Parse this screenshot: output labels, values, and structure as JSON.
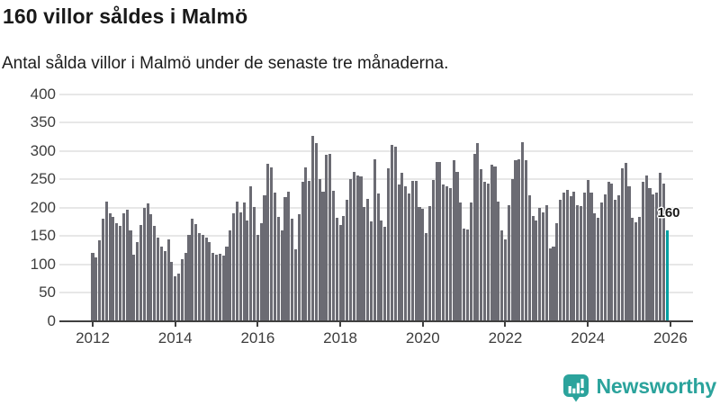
{
  "header": {
    "title": "160 villor såldes i Malmö",
    "subtitle": "Antal sålda villor i Malmö under de senaste tre månaderna."
  },
  "chart_data": {
    "type": "bar",
    "title": "160 villor såldes i Malmö",
    "subtitle": "Antal sålda villor i Malmö under de senaste tre månaderna.",
    "unit": "sålda villor (rullande 3 månader)",
    "frequency": "monthly",
    "start_period": "2012-01",
    "end_period": "2025-12",
    "xlabel": "",
    "ylabel": "",
    "ylim": [
      0,
      400
    ],
    "y_ticks": [
      0,
      50,
      100,
      150,
      200,
      250,
      300,
      350,
      400
    ],
    "x_tick_years": [
      2012,
      2014,
      2016,
      2018,
      2020,
      2022,
      2024,
      2026
    ],
    "grid": "horizontal",
    "legend": "none",
    "values_by_year": {
      "2012": [
        120,
        112,
        143,
        180,
        210,
        190,
        184,
        173,
        168,
        190,
        196,
        160
      ],
      "2013": [
        118,
        139,
        170,
        200,
        207,
        188,
        168,
        148,
        131,
        123,
        144,
        104
      ],
      "2014": [
        80,
        84,
        110,
        120,
        152,
        180,
        171,
        155,
        152,
        147,
        140,
        120
      ],
      "2015": [
        118,
        119,
        116,
        132,
        160,
        190,
        211,
        192,
        209,
        178,
        238,
        201
      ],
      "2016": [
        152,
        172,
        222,
        277,
        271,
        226,
        184,
        160,
        218,
        229,
        181,
        126
      ],
      "2017": [
        189,
        245,
        271,
        247,
        327,
        313,
        250,
        228,
        293,
        295,
        230,
        183
      ],
      "2018": [
        169,
        185,
        214,
        251,
        263,
        256,
        255,
        201,
        216,
        176,
        286,
        225
      ],
      "2019": [
        177,
        167,
        270,
        310,
        307,
        241,
        261,
        238,
        225,
        247,
        247,
        201
      ],
      "2020": [
        198,
        156,
        203,
        249,
        280,
        280,
        241,
        238,
        235,
        283,
        263,
        209
      ],
      "2021": [
        164,
        161,
        209,
        295,
        313,
        268,
        246,
        243,
        275,
        273,
        210,
        160
      ],
      "2022": [
        144,
        204,
        251,
        283,
        286,
        316,
        284,
        222,
        185,
        178,
        199,
        192
      ],
      "2023": [
        205,
        128,
        131,
        172,
        214,
        227,
        231,
        220,
        229,
        204,
        203,
        227
      ],
      "2024": [
        249,
        226,
        190,
        182,
        209,
        224,
        246,
        243,
        214,
        222,
        270,
        279
      ],
      "2025": [
        238,
        182,
        175,
        184,
        246,
        257,
        235,
        224,
        226,
        261,
        242,
        160
      ]
    },
    "highlight": {
      "period": "2025-12",
      "value": 160,
      "label": "160"
    }
  },
  "colors": {
    "bar": "#6b6b73",
    "highlight": "#00a0a2",
    "grid": "#e7e7e7",
    "axis": "#404040",
    "tick_label": "#3d3d3d",
    "text": "#191919",
    "brand": "#2ba39c"
  },
  "branding": {
    "logo_text": "Newsworthy",
    "logo_icon": "newsworthy-chart-bubble-icon"
  }
}
